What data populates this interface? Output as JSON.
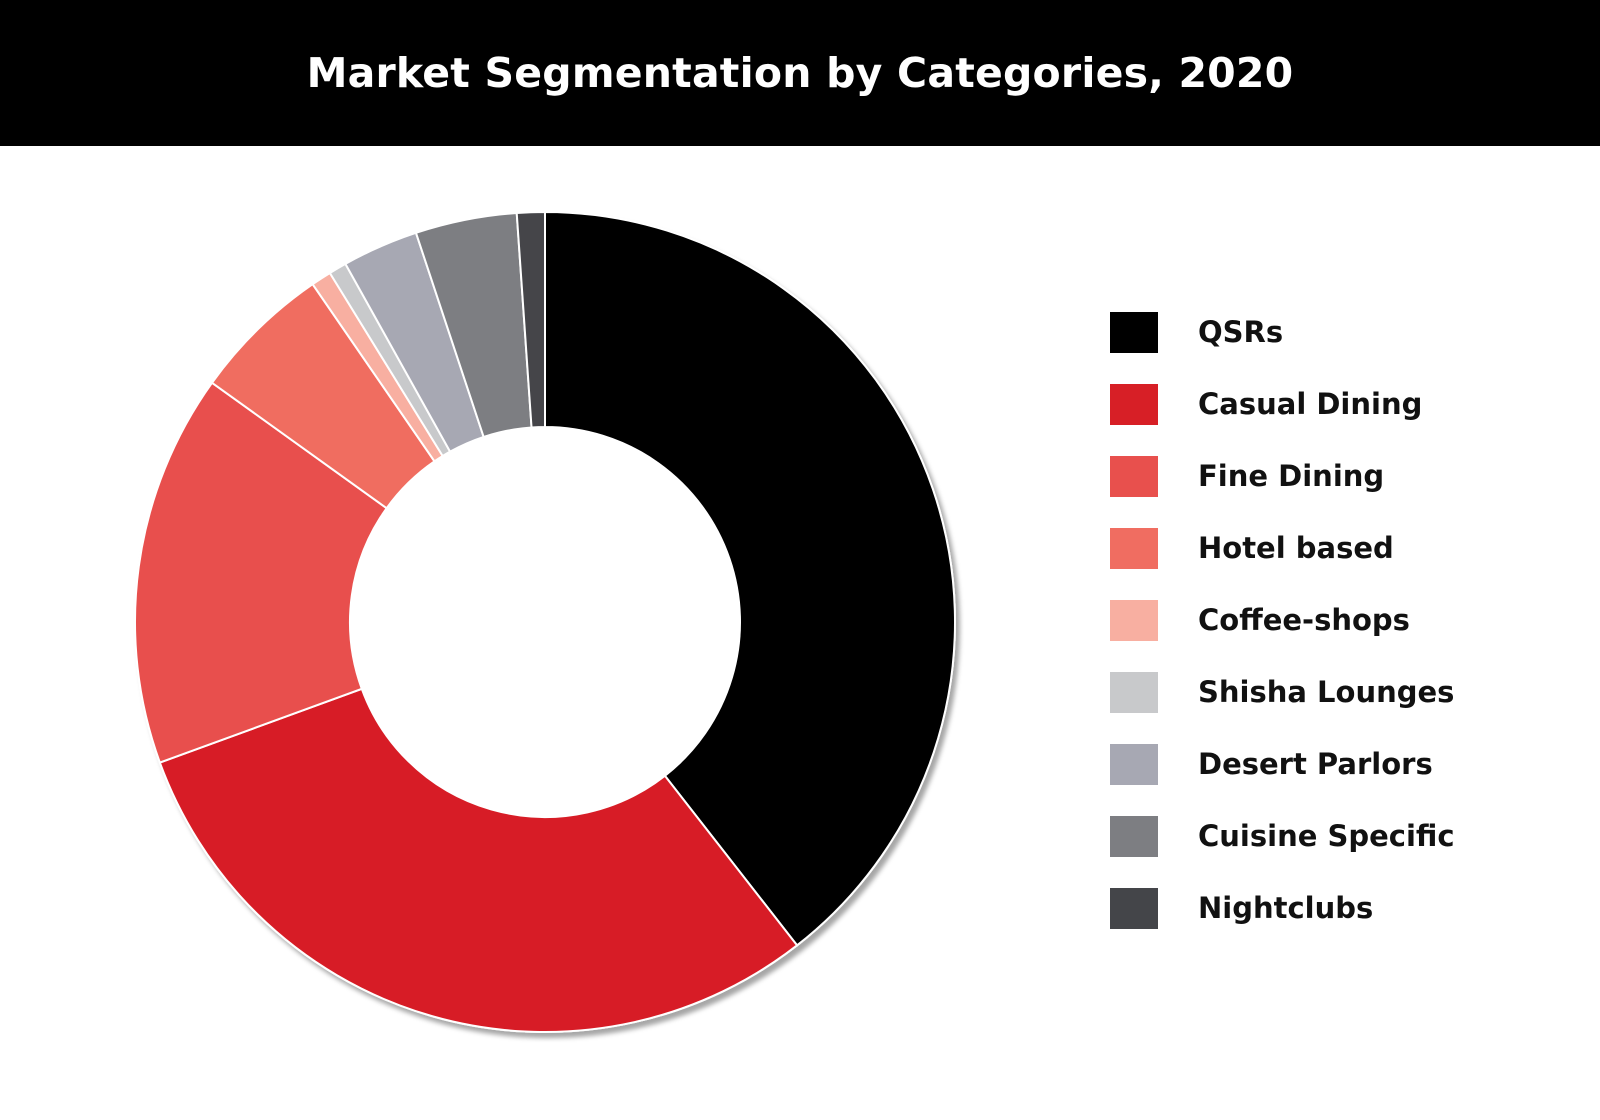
{
  "header": {
    "title": "Market Segmentation by Categories, 2020"
  },
  "chart_data": {
    "type": "pie",
    "variant": "donut",
    "title": "Market Segmentation by Categories, 2020",
    "legend_placement": "right",
    "slices": [
      {
        "label": "QSRs",
        "value": 39.5,
        "color": "#000000"
      },
      {
        "label": "Casual Dining",
        "value": 30.0,
        "color": "#d71f26"
      },
      {
        "label": "Fine Dining",
        "value": 15.5,
        "color": "#e8504d"
      },
      {
        "label": "Hotel based",
        "value": 5.5,
        "color": "#f06d61"
      },
      {
        "label": "Coffee-shops",
        "value": 0.8,
        "color": "#f8afa1"
      },
      {
        "label": "Shisha Lounges",
        "value": 0.7,
        "color": "#c8c9cb"
      },
      {
        "label": "Desert Parlors",
        "value": 3.0,
        "color": "#a7a8b3"
      },
      {
        "label": "Cuisine Specific",
        "value": 4.0,
        "color": "#7d7e82"
      },
      {
        "label": "Nightclubs",
        "value": 1.1,
        "color": "#444549"
      }
    ]
  }
}
